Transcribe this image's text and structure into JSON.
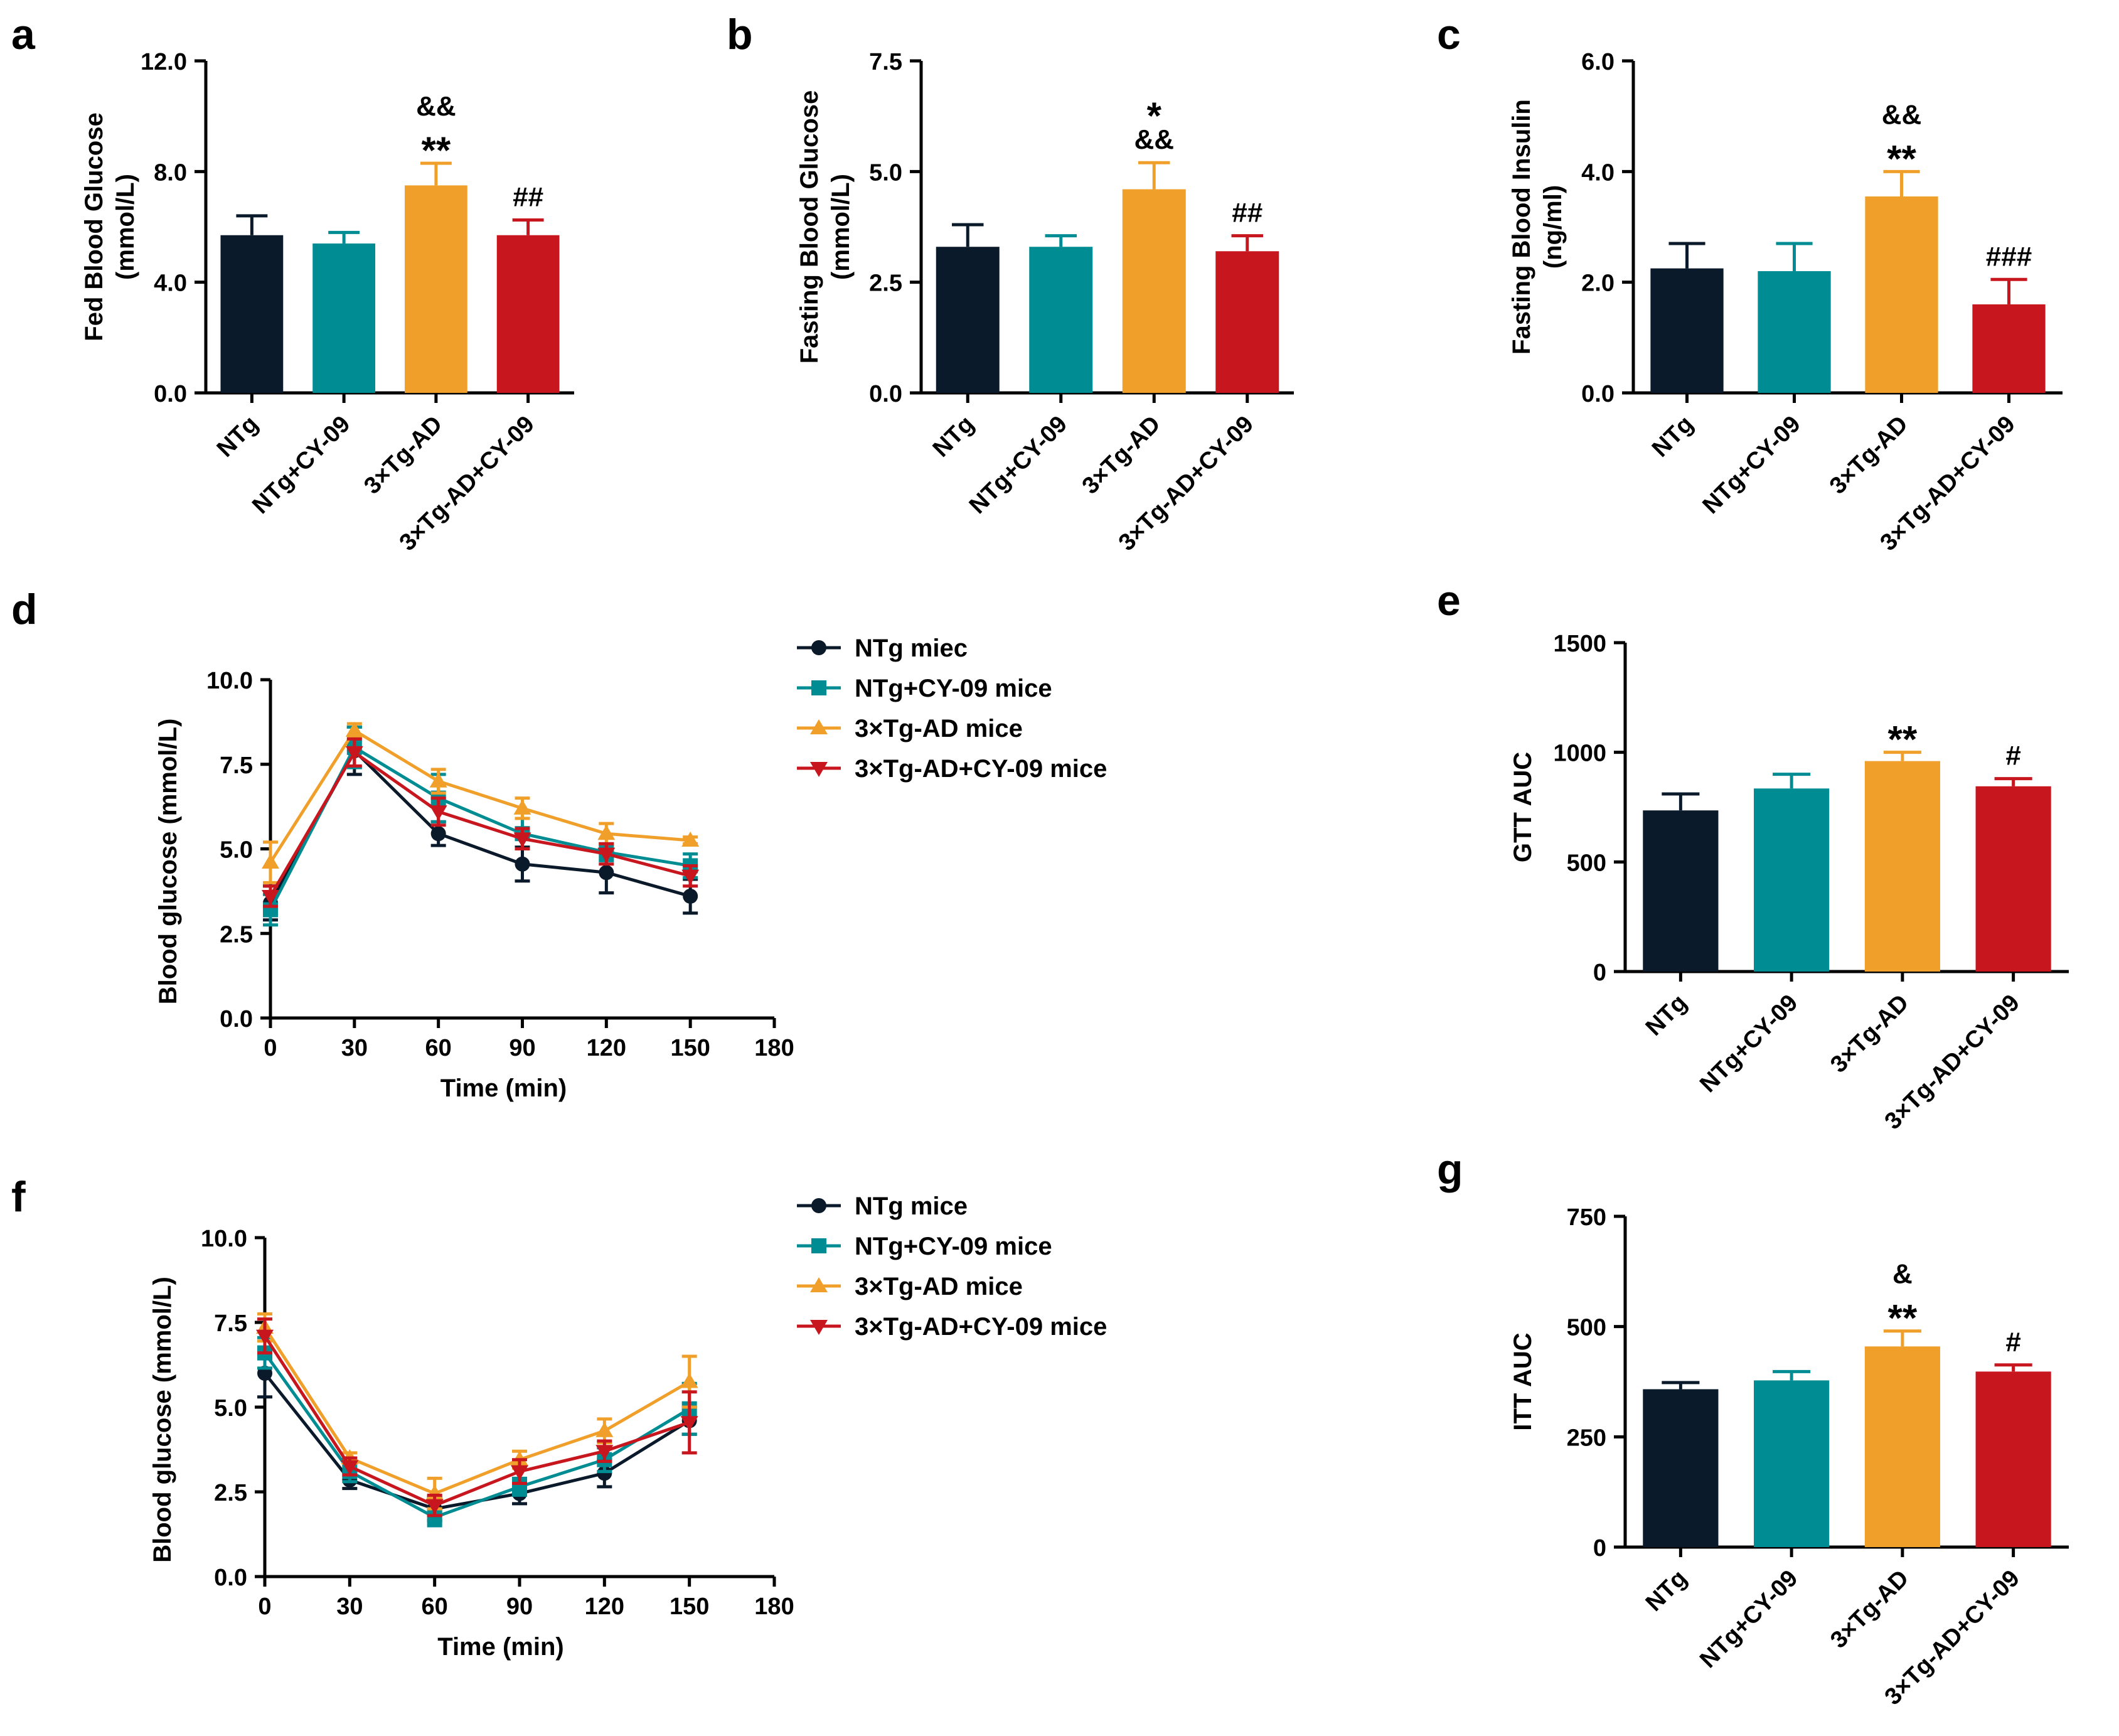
{
  "colors": {
    "ntg": "#0b1a2a",
    "ntg_cy09": "#008c93",
    "tgad": "#f0a02a",
    "tgad_cy09": "#c8161e",
    "axis": "#000000"
  },
  "chart_data": [
    {
      "panel": "a",
      "type": "bar",
      "ylabel": "Fed Blood Glucose",
      "ylabel_unit": "(mmol/L)",
      "ylim": [
        0,
        12
      ],
      "yticks": [
        "0.0",
        "4.0",
        "8.0",
        "12.0"
      ],
      "categories": [
        "NTg",
        "NTg+CY-09",
        "3×Tg-AD",
        "3×Tg-AD+CY-09"
      ],
      "values": [
        5.7,
        5.4,
        7.5,
        5.7
      ],
      "errors": [
        0.7,
        0.4,
        0.8,
        0.55
      ],
      "annotations": [
        "",
        "",
        "&&\n**",
        "##"
      ]
    },
    {
      "panel": "b",
      "type": "bar",
      "ylabel": "Fasting Blood Glucose",
      "ylabel_unit": "(mmol/L)",
      "ylim": [
        0,
        7.5
      ],
      "yticks": [
        "0.0",
        "2.5",
        "5.0",
        "7.5"
      ],
      "categories": [
        "NTg",
        "NTg+CY-09",
        "3×Tg-AD",
        "3×Tg-AD+CY-09"
      ],
      "values": [
        3.3,
        3.3,
        4.6,
        3.2
      ],
      "errors": [
        0.5,
        0.25,
        0.6,
        0.35
      ],
      "annotations": [
        "",
        "",
        "*\n&&",
        "##"
      ]
    },
    {
      "panel": "c",
      "type": "bar",
      "ylabel": "Fasting Blood Insulin",
      "ylabel_unit": "(ng/ml)",
      "ylim": [
        0,
        6
      ],
      "yticks": [
        "0.0",
        "2.0",
        "4.0",
        "6.0"
      ],
      "categories": [
        "NTg",
        "NTg+CY-09",
        "3×Tg-AD",
        "3×Tg-AD+CY-09"
      ],
      "values": [
        2.25,
        2.2,
        3.55,
        1.6
      ],
      "errors": [
        0.45,
        0.5,
        0.45,
        0.45
      ],
      "annotations": [
        "",
        "",
        "&&\n**",
        "###"
      ]
    },
    {
      "panel": "d",
      "type": "line",
      "xlabel": "Time (min)",
      "ylabel": "Blood glucose (mmol/L)",
      "xlim": [
        0,
        180
      ],
      "ylim": [
        0,
        10
      ],
      "xticks": [
        "0",
        "30",
        "60",
        "90",
        "120",
        "150",
        "180"
      ],
      "yticks": [
        "0.0",
        "2.5",
        "5.0",
        "7.5",
        "10.0"
      ],
      "x": [
        0,
        30,
        60,
        90,
        120,
        150
      ],
      "series": [
        {
          "name": "NTg miec",
          "values": [
            3.4,
            7.9,
            5.45,
            4.55,
            4.3,
            3.6
          ],
          "errors": [
            0.5,
            0.7,
            0.35,
            0.5,
            0.6,
            0.5
          ],
          "marker": "circle"
        },
        {
          "name": "NTg+CY-09 mice",
          "values": [
            3.2,
            8.0,
            6.5,
            5.45,
            4.9,
            4.5
          ],
          "errors": [
            0.45,
            0.6,
            0.7,
            0.45,
            0.25,
            0.35
          ],
          "marker": "square"
        },
        {
          "name": "3×Tg-AD mice",
          "values": [
            4.6,
            8.5,
            7.0,
            6.2,
            5.45,
            5.25
          ],
          "errors": [
            0.6,
            0.2,
            0.35,
            0.3,
            0.3,
            0.1
          ],
          "marker": "triangle-up"
        },
        {
          "name": "3×Tg-AD+CY-09 mice",
          "values": [
            3.6,
            7.85,
            6.1,
            5.3,
            4.85,
            4.2
          ],
          "errors": [
            0.3,
            0.4,
            0.4,
            0.3,
            0.3,
            0.3
          ],
          "marker": "triangle-down"
        }
      ]
    },
    {
      "panel": "e",
      "type": "bar",
      "ylabel": "GTT AUC",
      "ylabel_unit": "",
      "ylim": [
        0,
        1500
      ],
      "yticks": [
        "0",
        "500",
        "1000",
        "1500"
      ],
      "categories": [
        "NTg",
        "NTg+CY-09",
        "3×Tg-AD",
        "3×Tg-AD+CY-09"
      ],
      "values": [
        735,
        835,
        960,
        845
      ],
      "errors": [
        75,
        65,
        40,
        35
      ],
      "annotations": [
        "",
        "",
        "**",
        "#"
      ]
    },
    {
      "panel": "f",
      "type": "line",
      "xlabel": "Time (min)",
      "ylabel": "Blood glucose (mmol/L)",
      "xlim": [
        0,
        180
      ],
      "ylim": [
        0,
        10
      ],
      "xticks": [
        "0",
        "30",
        "60",
        "90",
        "120",
        "150",
        "180"
      ],
      "yticks": [
        "0.0",
        "2.5",
        "5.0",
        "7.5",
        "10.0"
      ],
      "x": [
        0,
        30,
        60,
        90,
        120,
        150
      ],
      "series": [
        {
          "name": "NTg mice",
          "values": [
            6.0,
            2.85,
            2.0,
            2.45,
            3.05,
            4.6
          ],
          "errors": [
            0.7,
            0.25,
            0.35,
            0.3,
            0.4,
            0.4
          ],
          "marker": "circle"
        },
        {
          "name": "NTg+CY-09 mice",
          "values": [
            6.6,
            3.1,
            1.75,
            2.65,
            3.45,
            4.95
          ],
          "errors": [
            0.45,
            0.3,
            0.25,
            0.25,
            0.35,
            0.75
          ],
          "marker": "square"
        },
        {
          "name": "3×Tg-AD mice",
          "values": [
            7.35,
            3.5,
            2.45,
            3.45,
            4.3,
            5.75
          ],
          "errors": [
            0.4,
            0.15,
            0.45,
            0.25,
            0.35,
            0.75
          ],
          "marker": "triangle-up"
        },
        {
          "name": "3×Tg-AD+CY-09 mice",
          "values": [
            7.1,
            3.25,
            2.1,
            3.1,
            3.7,
            4.55
          ],
          "errors": [
            0.5,
            0.25,
            0.3,
            0.35,
            0.3,
            0.9
          ],
          "marker": "triangle-down"
        }
      ]
    },
    {
      "panel": "g",
      "type": "bar",
      "ylabel": "ITT AUC",
      "ylabel_unit": "",
      "ylim": [
        0,
        750
      ],
      "yticks": [
        "0",
        "250",
        "500",
        "750"
      ],
      "categories": [
        "NTg",
        "NTg+CY-09",
        "3×Tg-AD",
        "3×Tg-AD+CY-09"
      ],
      "values": [
        358,
        378,
        455,
        398
      ],
      "errors": [
        15,
        20,
        35,
        15
      ],
      "annotations": [
        "",
        "",
        "&\n**",
        "#"
      ]
    }
  ]
}
